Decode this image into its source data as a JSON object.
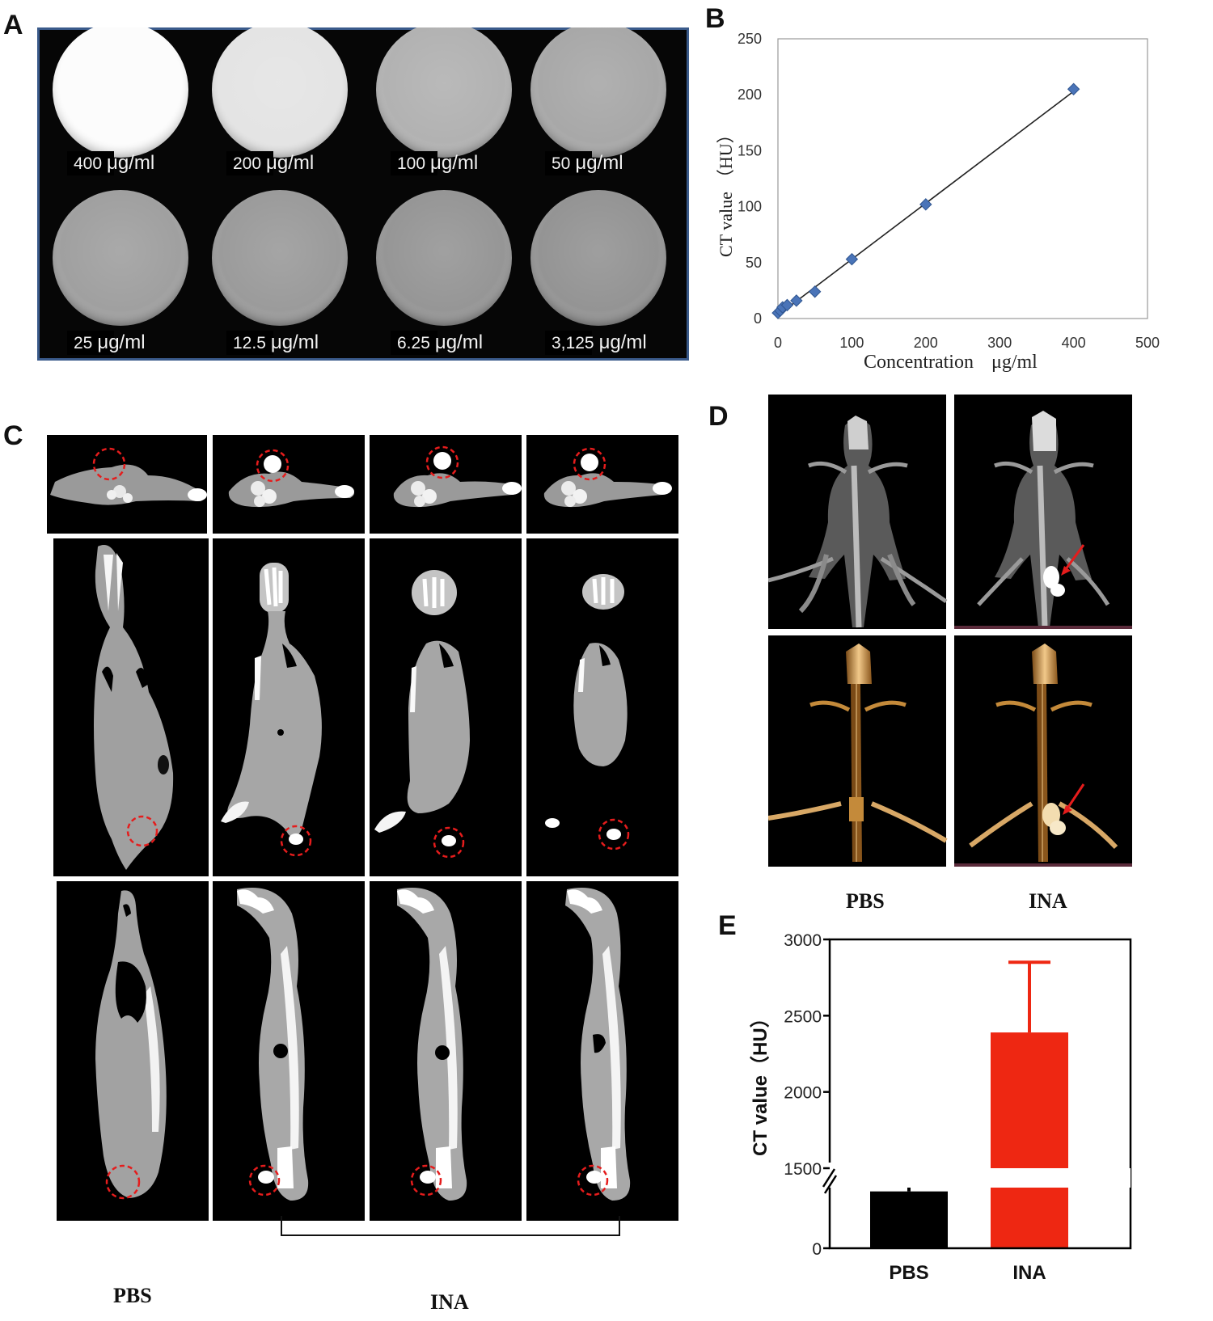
{
  "panels": {
    "a": {
      "label": "A",
      "wells": [
        {
          "conc": "400",
          "unit": "μg/ml",
          "gray": 252
        },
        {
          "conc": "200",
          "unit": "μg/ml",
          "gray": 228
        },
        {
          "conc": "100",
          "unit": "μg/ml",
          "gray": 178
        },
        {
          "conc": "50",
          "unit": "μg/ml",
          "gray": 168
        },
        {
          "conc": "25",
          "unit": "μg/ml",
          "gray": 160
        },
        {
          "conc": "12.5",
          "unit": "μg/ml",
          "gray": 155
        },
        {
          "conc": "6.25",
          "unit": "μg/ml",
          "gray": 150
        },
        {
          "conc": "3,125",
          "unit": "μg/ml",
          "gray": 148
        }
      ]
    },
    "b": {
      "label": "B"
    },
    "c": {
      "label": "C",
      "group_left": "PBS",
      "group_right": "INA"
    },
    "d": {
      "label": "D",
      "left": "PBS",
      "right": "INA"
    },
    "e": {
      "label": "E"
    }
  },
  "chart_data": [
    {
      "type": "scatter",
      "panel": "B",
      "title": "",
      "xlabel": "Concentration",
      "xlabel_unit": "μg/ml",
      "ylabel": "CT value",
      "ylabel_unit": "（HU）",
      "xlim": [
        0,
        500
      ],
      "ylim": [
        0,
        250
      ],
      "xticks": [
        0,
        100,
        200,
        300,
        400,
        500
      ],
      "yticks": [
        0,
        50,
        100,
        150,
        200,
        250
      ],
      "x": [
        0,
        3.125,
        6.25,
        12.5,
        25,
        50,
        100,
        200,
        400
      ],
      "y": [
        5,
        7,
        10,
        12,
        16,
        24,
        53,
        102,
        205
      ],
      "trendline": {
        "x": [
          0,
          400
        ],
        "y": [
          3,
          203
        ]
      },
      "marker_color": "#4a74b8",
      "grid": false
    },
    {
      "type": "bar",
      "panel": "E",
      "title": "",
      "xlabel": "",
      "ylabel": "CT value（HU）",
      "categories": [
        "PBS",
        "INA"
      ],
      "values": [
        95,
        2390
      ],
      "errors": [
        25,
        460
      ],
      "colors": [
        "#000000",
        "#ee2712"
      ],
      "yticks": [
        "0",
        "1500",
        "2000",
        "2500",
        "3000"
      ],
      "axis_break": [
        100,
        1500
      ],
      "ylim": [
        0,
        3000
      ],
      "grid": false
    }
  ]
}
